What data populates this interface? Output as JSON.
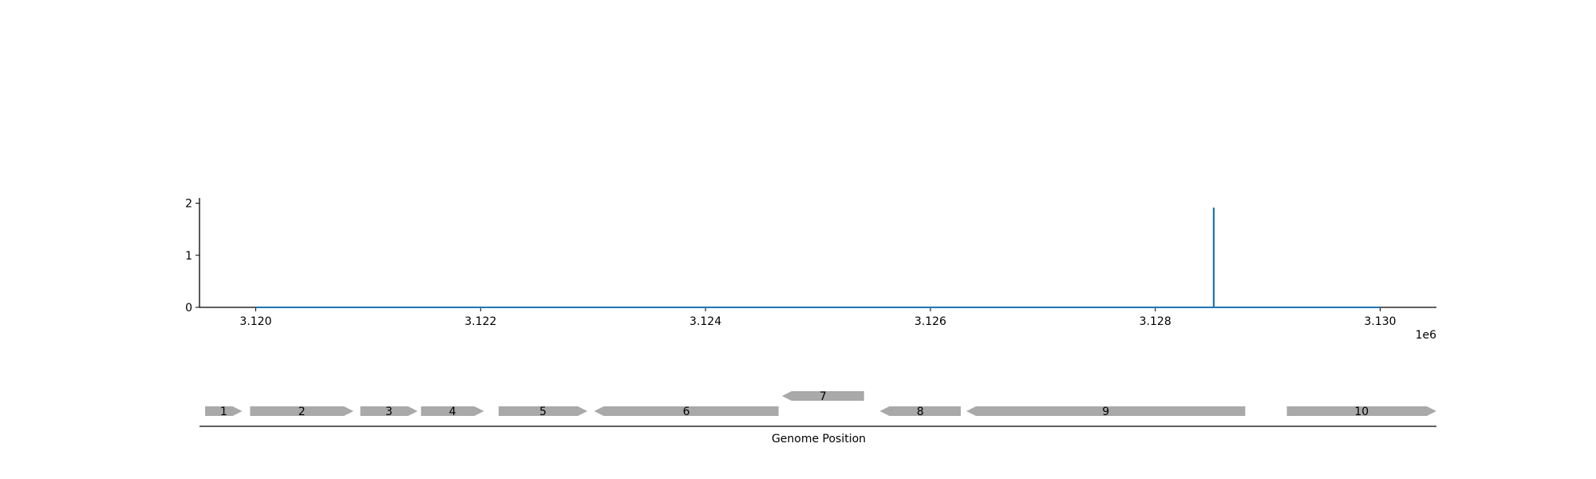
{
  "chart_data": {
    "type": "line",
    "title": "",
    "x_offset_label": "1e6",
    "xlim": [
      3119500,
      3130500
    ],
    "ylim": [
      0,
      2.1
    ],
    "x_ticks": [
      3120000,
      3122000,
      3124000,
      3126000,
      3128000,
      3130000
    ],
    "x_tick_labels": [
      "3.120",
      "3.122",
      "3.124",
      "3.126",
      "3.128",
      "3.130"
    ],
    "y_ticks": [
      0,
      1,
      2
    ],
    "y_tick_labels": [
      "0",
      "1",
      "2"
    ],
    "grid": false,
    "series": [
      {
        "color": "#1f77b4",
        "x": [
          3120000,
          3128519,
          3128519,
          3128521,
          3128521,
          3130000
        ],
        "y": [
          0,
          0,
          1.9,
          1.9,
          0,
          0
        ]
      }
    ],
    "genes": {
      "xlabel": "Genome Position",
      "color": "#a9a9a9",
      "items": [
        {
          "label": "1",
          "start": 3119550,
          "end": 3119880,
          "strand": "+",
          "row": 0
        },
        {
          "label": "2",
          "start": 3119950,
          "end": 3120870,
          "strand": "+",
          "row": 0
        },
        {
          "label": "3",
          "start": 3120930,
          "end": 3121440,
          "strand": "+",
          "row": 0
        },
        {
          "label": "4",
          "start": 3121470,
          "end": 3122030,
          "strand": "+",
          "row": 0
        },
        {
          "label": "5",
          "start": 3122160,
          "end": 3122950,
          "strand": "+",
          "row": 0
        },
        {
          "label": "6",
          "start": 3123010,
          "end": 3124650,
          "strand": "-",
          "row": 0
        },
        {
          "label": "7",
          "start": 3124680,
          "end": 3125410,
          "strand": "-",
          "row": 1
        },
        {
          "label": "8",
          "start": 3125550,
          "end": 3126270,
          "strand": "-",
          "row": 0
        },
        {
          "label": "9",
          "start": 3126320,
          "end": 3128800,
          "strand": "-",
          "row": 0
        },
        {
          "label": "10",
          "start": 3129170,
          "end": 3130500,
          "strand": "+",
          "row": 0
        }
      ]
    }
  }
}
